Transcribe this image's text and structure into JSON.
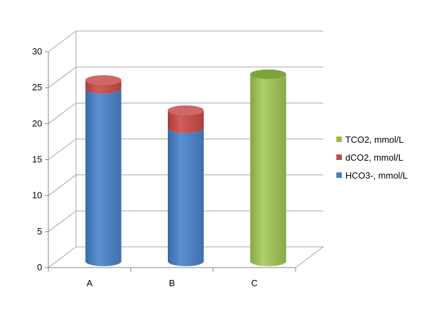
{
  "chart_data": {
    "type": "bar",
    "stacked": true,
    "style": "3d-cylinder",
    "title": "",
    "xlabel": "",
    "ylabel": "",
    "categories": [
      "A",
      "B",
      "C"
    ],
    "ylim": [
      0,
      30
    ],
    "yticks": [
      0,
      5,
      10,
      15,
      20,
      25,
      30
    ],
    "grid": true,
    "legend_position": "right",
    "series": [
      {
        "name": "HCO3-, mmol/L",
        "values": [
          24,
          18.5,
          0
        ],
        "color": "#4a7ebb"
      },
      {
        "name": "dCO2, mmol/L",
        "values": [
          1.2,
          2.5,
          0
        ],
        "color": "#be4b48"
      },
      {
        "name": "TCO2, mmol/L",
        "values": [
          0,
          0,
          26
        ],
        "color": "#98b954"
      }
    ],
    "legend_order": [
      "TCO2, mmol/L",
      "dCO2, mmol/L",
      "HCO3-, mmol/L"
    ]
  }
}
